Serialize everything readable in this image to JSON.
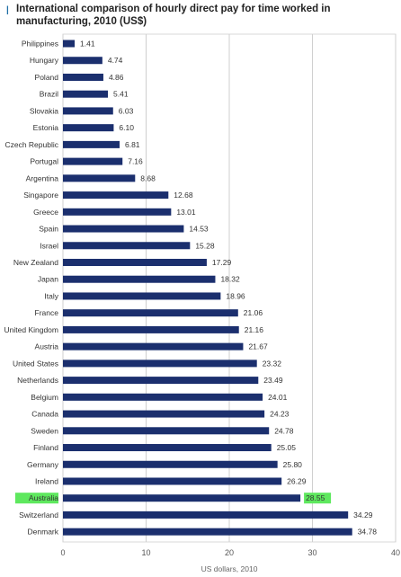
{
  "chart_data": {
    "type": "bar",
    "orientation": "horizontal",
    "title": "International comparison of hourly direct pay for time worked in manufacturing, 2010 (US$)",
    "xlabel": "US dollars, 2010",
    "ylabel": "",
    "xlim": [
      0,
      40
    ],
    "xticks": [
      "0",
      "10",
      "20",
      "30",
      "40"
    ],
    "grid": true,
    "legend": "none",
    "bar_color": "#1b2f6e",
    "highlight_color": "#5ee85e",
    "highlight_category": "Australia",
    "categories": [
      "Philippines",
      "Hungary",
      "Poland",
      "Brazil",
      "Slovakia",
      "Estonia",
      "Czech Republic",
      "Portugal",
      "Argentina",
      "Singapore",
      "Greece",
      "Spain",
      "Israel",
      "New Zealand",
      "Japan",
      "Italy",
      "France",
      "United Kingdom",
      "Austria",
      "United States",
      "Netherlands",
      "Belgium",
      "Canada",
      "Sweden",
      "Finland",
      "Germany",
      "Ireland",
      "Australia",
      "Switzerland",
      "Denmark"
    ],
    "values": [
      1.41,
      4.74,
      4.86,
      5.41,
      6.03,
      6.1,
      6.81,
      7.16,
      8.68,
      12.68,
      13.01,
      14.53,
      15.28,
      17.29,
      18.32,
      18.96,
      21.06,
      21.16,
      21.67,
      23.32,
      23.49,
      24.01,
      24.23,
      24.78,
      25.05,
      25.8,
      26.29,
      28.55,
      34.29,
      34.78
    ],
    "value_labels": [
      "1.41",
      "4.74",
      "4.86",
      "5.41",
      "6.03",
      "6.10",
      "6.81",
      "7.16",
      "8.68",
      "12.68",
      "13.01",
      "14.53",
      "15.28",
      "17.29",
      "18.32",
      "18.96",
      "21.06",
      "21.16",
      "21.67",
      "23.32",
      "23.49",
      "24.01",
      "24.23",
      "24.78",
      "25.05",
      "25.80",
      "26.29",
      "28.55",
      "34.29",
      "34.78"
    ]
  }
}
